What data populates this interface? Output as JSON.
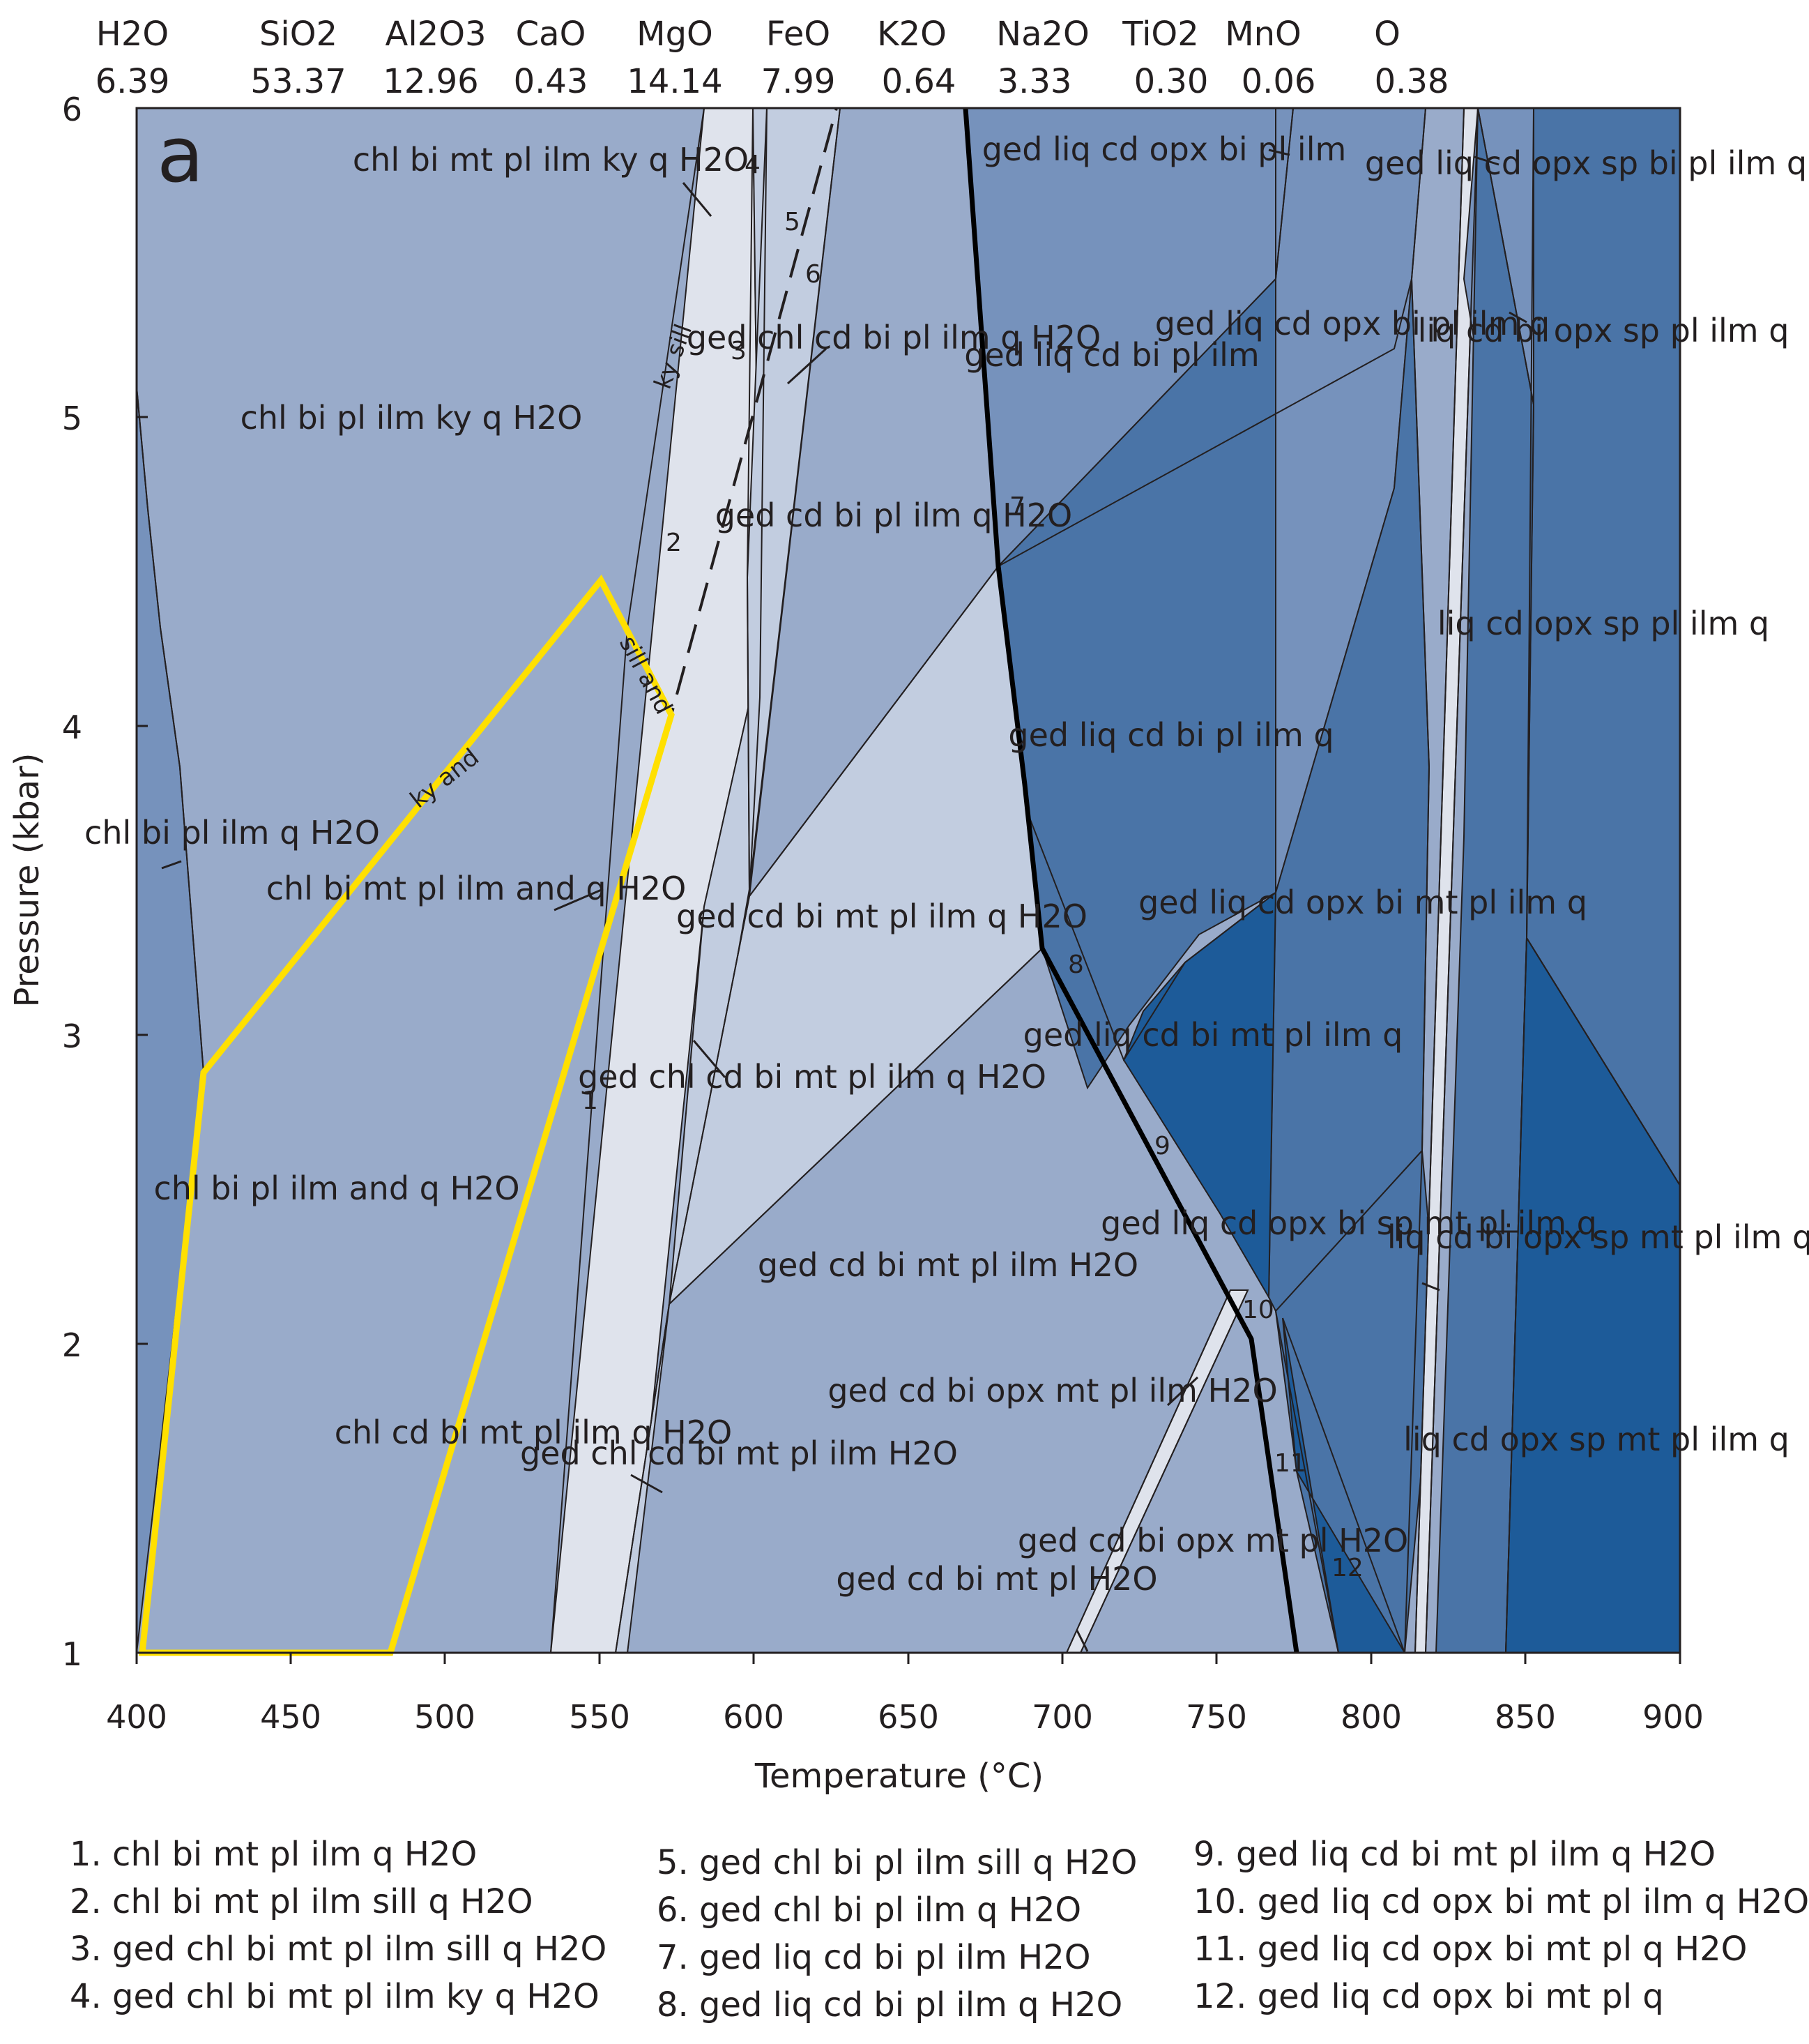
{
  "panel_label": "a",
  "header": {
    "oxides": [
      {
        "name": "H2O",
        "value": "6.39"
      },
      {
        "name": "SiO2",
        "value": "53.37"
      },
      {
        "name": "Al2O3",
        "value": "12.96"
      },
      {
        "name": "CaO",
        "value": "0.43"
      },
      {
        "name": "MgO",
        "value": "14.14"
      },
      {
        "name": "FeO",
        "value": "7.99"
      },
      {
        "name": "K2O",
        "value": "0.64"
      },
      {
        "name": "Na2O",
        "value": "3.33"
      },
      {
        "name": "TiO2",
        "value": "0.30"
      },
      {
        "name": "MnO",
        "value": "0.06"
      },
      {
        "name": "O",
        "value": "0.38"
      }
    ]
  },
  "axes": {
    "xlabel": "Temperature (°C)",
    "ylabel": "Pressure (kbar)",
    "x_ticks": [
      "400",
      "450",
      "500",
      "550",
      "600",
      "650",
      "700",
      "750",
      "800",
      "850",
      "900"
    ],
    "y_ticks": [
      "1",
      "2",
      "3",
      "4",
      "5",
      "6"
    ],
    "xlim": [
      400,
      900
    ],
    "ylim": [
      1,
      6
    ]
  },
  "colors": {
    "very_light": "#dfe3ec",
    "light": "#c2cde0",
    "medium_light": "#99abca",
    "medium": "#7692bc",
    "medium_dark": "#4a74a7",
    "dark": "#1d5b99",
    "line": "#231f20",
    "highlight": "#ffe000"
  },
  "fields": [
    {
      "label": "chl bi pl ilm ky q H2O"
    },
    {
      "label": "chl bi mt pl ilm ky q H2O"
    },
    {
      "label": "chl bi pl ilm q H2O"
    },
    {
      "label": "chl bi mt pl ilm and q H2O"
    },
    {
      "label": "chl bi pl ilm and q H2O"
    },
    {
      "label": "chl cd bi mt pl ilm q H2O"
    },
    {
      "label": "ged chl cd bi mt pl ilm H2O"
    },
    {
      "label": "ged chl cd bi mt pl ilm q H2O"
    },
    {
      "label": "ged chl cd bi pl ilm q H2O"
    },
    {
      "label": "ged cd bi pl ilm q H2O"
    },
    {
      "label": "ged cd bi mt pl ilm q H2O"
    },
    {
      "label": "ged cd bi mt pl ilm H2O"
    },
    {
      "label": "ged cd bi opx mt pl ilm H2O"
    },
    {
      "label": "ged cd bi mt pl H2O"
    },
    {
      "label": "ged cd bi opx mt pl H2O"
    },
    {
      "label": "ged liq cd bi pl ilm"
    },
    {
      "label": "ged liq cd opx bi pl ilm"
    },
    {
      "label": "ged liq cd bi pl ilm q"
    },
    {
      "label": "ged liq cd opx bi pl ilm q"
    },
    {
      "label": "ged liq cd opx bi mt pl ilm q"
    },
    {
      "label": "ged liq cd bi mt pl ilm q"
    },
    {
      "label": "ged liq cd opx bi sp mt pl ilm q"
    },
    {
      "label": "ged liq cd opx sp bi pl ilm q"
    },
    {
      "label": "liq cd bi opx sp pl ilm q"
    },
    {
      "label": "liq cd opx sp pl ilm q"
    },
    {
      "label": "liq cd bi opx sp mt pl ilm q"
    },
    {
      "label": "liq cd opx sp mt pl ilm q"
    }
  ],
  "reaction_labels": [
    "ky sill",
    "sill and",
    "ky and"
  ],
  "small_field_numbers": [
    "1",
    "2",
    "3",
    "4",
    "5",
    "6",
    "7",
    "8",
    "9",
    "10",
    "11",
    "12"
  ],
  "legend": [
    "1. chl bi mt pl ilm q H2O",
    "2. chl bi mt pl ilm sill q H2O",
    "3. ged chl bi mt pl ilm sill q H2O",
    "4. ged chl bi mt pl ilm ky q H2O",
    "5. ged chl bi pl ilm sill q H2O",
    "6. ged chl bi pl ilm q H2O",
    "7. ged liq cd bi pl ilm H2O",
    "8. ged liq cd bi pl ilm q H2O",
    "9. ged liq cd bi mt pl ilm q H2O",
    "10. ged liq cd opx bi mt pl ilm q H2O",
    "11. ged liq cd opx bi mt pl q H2O",
    "12. ged liq cd opx bi mt pl q"
  ]
}
